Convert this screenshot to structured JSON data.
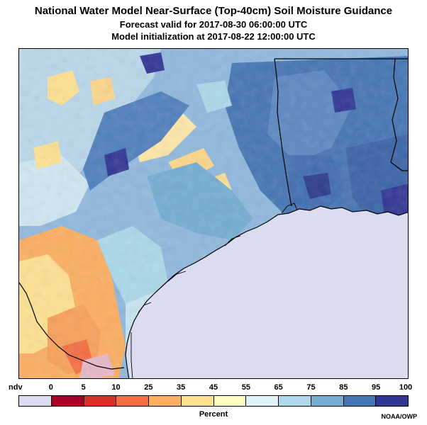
{
  "header": {
    "title": "National Water Model Near-Surface (Top-40cm) Soil Moisture Guidance",
    "forecast": "Forecast valid for 2017-08-30 06:00:00 UTC",
    "initialization": "Model initialization at 2017-08-22 12:00:00 UTC"
  },
  "map": {
    "ocean_color": "#dcdcf0",
    "land_base_color": "#8fb8de",
    "boundary_color": "#000000"
  },
  "legend": {
    "ndv_label": "ndv",
    "ticks": [
      "0",
      "5",
      "10",
      "25",
      "35",
      "45",
      "55",
      "65",
      "75",
      "85",
      "95",
      "100"
    ],
    "colors": [
      "#dcdcf0",
      "#a50026",
      "#d73027",
      "#f46d43",
      "#fdae61",
      "#fee090",
      "#ffffbf",
      "#e0f3f8",
      "#abd9e9",
      "#74add1",
      "#4575b4",
      "#313695"
    ],
    "label": "Percent"
  },
  "credit": "NOAA/OWP"
}
